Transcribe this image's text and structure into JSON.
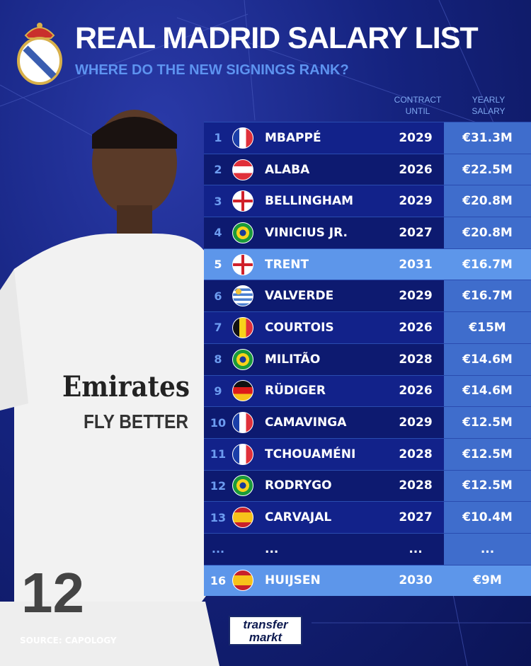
{
  "header": {
    "title": "REAL MADRID SALARY LIST",
    "subtitle": "WHERE DO THE NEW SIGNINGS RANK?"
  },
  "columns": {
    "contract": [
      "CONTRACT",
      "UNTIL"
    ],
    "salary": [
      "YEARLY",
      "SALARY"
    ]
  },
  "colors": {
    "highlight": "#5d96ea",
    "row_dark": "#0d1a70",
    "row_light": "#12228a",
    "salary_cell": "#3f6dcc",
    "subtitle": "#5d93f0"
  },
  "rows": [
    {
      "rank": "1",
      "flag": "france",
      "name": "MBAPPÉ",
      "until": "2029",
      "salary": "€31.3M",
      "highlight": false
    },
    {
      "rank": "2",
      "flag": "austria",
      "name": "ALABA",
      "until": "2026",
      "salary": "€22.5M",
      "highlight": false
    },
    {
      "rank": "3",
      "flag": "england",
      "name": "BELLINGHAM",
      "until": "2029",
      "salary": "€20.8M",
      "highlight": false
    },
    {
      "rank": "4",
      "flag": "brazil",
      "name": "VINICIUS JR.",
      "until": "2027",
      "salary": "€20.8M",
      "highlight": false
    },
    {
      "rank": "5",
      "flag": "england",
      "name": "TRENT",
      "until": "2031",
      "salary": "€16.7M",
      "highlight": true
    },
    {
      "rank": "6",
      "flag": "uruguay",
      "name": "VALVERDE",
      "until": "2029",
      "salary": "€16.7M",
      "highlight": false
    },
    {
      "rank": "7",
      "flag": "belgium",
      "name": "COURTOIS",
      "until": "2026",
      "salary": "€15M",
      "highlight": false
    },
    {
      "rank": "8",
      "flag": "brazil",
      "name": "MILITÃO",
      "until": "2028",
      "salary": "€14.6M",
      "highlight": false
    },
    {
      "rank": "9",
      "flag": "germany",
      "name": "RÜDIGER",
      "until": "2026",
      "salary": "€14.6M",
      "highlight": false
    },
    {
      "rank": "10",
      "flag": "france",
      "name": "CAMAVINGA",
      "until": "2029",
      "salary": "€12.5M",
      "highlight": false
    },
    {
      "rank": "11",
      "flag": "france",
      "name": "TCHOUAMÉNI",
      "until": "2028",
      "salary": "€12.5M",
      "highlight": false
    },
    {
      "rank": "12",
      "flag": "brazil",
      "name": "RODRYGO",
      "until": "2028",
      "salary": "€12.5M",
      "highlight": false
    },
    {
      "rank": "13",
      "flag": "spain",
      "name": "CARVAJAL",
      "until": "2027",
      "salary": "€10.4M",
      "highlight": false
    },
    {
      "rank": "...",
      "flag": "",
      "name": "...",
      "until": "...",
      "salary": "...",
      "highlight": false
    },
    {
      "rank": "16",
      "flag": "spain",
      "name": "HUIJSEN",
      "until": "2030",
      "salary": "€9M",
      "highlight": true
    }
  ],
  "footer": {
    "source": "SOURCE: CAPOLOGY",
    "logo": "transfermarkt"
  },
  "player_shirt": {
    "sponsor": "Emirates",
    "tagline": "FLY BETTER",
    "number": "12"
  }
}
